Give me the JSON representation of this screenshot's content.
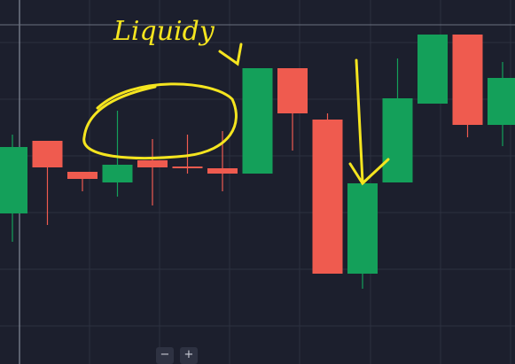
{
  "chart_data": {
    "type": "candlestick",
    "annotation": "Liquidy",
    "ylim": [
      0,
      411
    ],
    "up_color": "#14a05a",
    "down_color": "#ef5b4f",
    "open": [
      170,
      252,
      217,
      205,
      230,
      223,
      221,
      215,
      334,
      276,
      102,
      205,
      294,
      372,
      270
    ],
    "close": [
      245,
      222,
      209,
      225,
      222,
      221,
      215,
      334,
      283,
      102,
      204,
      300,
      372,
      270,
      323
    ],
    "high": [
      259,
      252,
      217,
      286,
      254,
      259,
      263,
      334,
      334,
      283,
      204,
      345,
      372,
      372,
      341
    ],
    "low": [
      138,
      157,
      195,
      189,
      179,
      215,
      195,
      215,
      241,
      102,
      85,
      205,
      294,
      256,
      246
    ]
  },
  "ui": {
    "zoom_out": "−",
    "zoom_in": "+"
  }
}
